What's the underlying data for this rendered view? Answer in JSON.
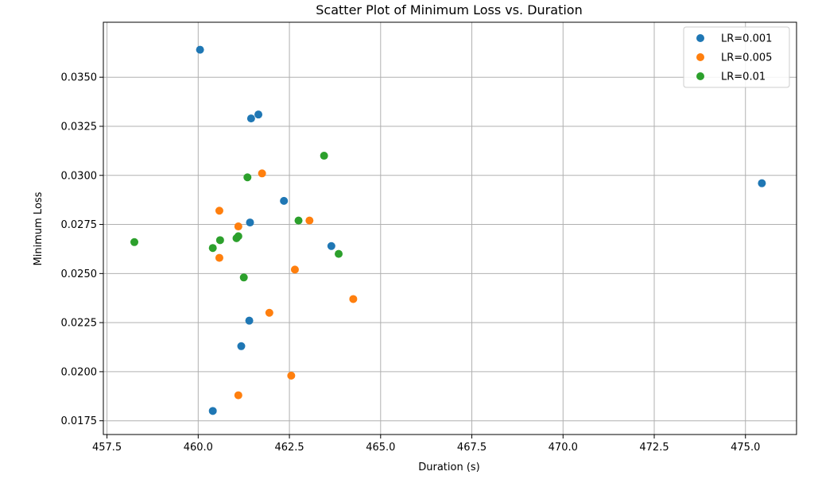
{
  "chart_data": {
    "type": "scatter",
    "title": "Scatter Plot of Minimum Loss vs. Duration",
    "xlabel": "Duration (s)",
    "ylabel": "Minimum Loss",
    "xlim": [
      457.4,
      476.4
    ],
    "ylim": [
      0.0168,
      0.0378
    ],
    "xticks": [
      457.5,
      460.0,
      462.5,
      465.0,
      467.5,
      470.0,
      472.5,
      475.0
    ],
    "xtick_labels": [
      "457.5",
      "460.0",
      "462.5",
      "465.0",
      "467.5",
      "470.0",
      "472.5",
      "475.0"
    ],
    "yticks": [
      0.0175,
      0.02,
      0.0225,
      0.025,
      0.0275,
      0.03,
      0.0325,
      0.035
    ],
    "ytick_labels": [
      "0.0175",
      "0.0200",
      "0.0225",
      "0.0250",
      "0.0275",
      "0.0300",
      "0.0325",
      "0.0350"
    ],
    "grid": true,
    "legend_position": "top-right",
    "series": [
      {
        "name": "LR=0.001",
        "color": "#1f77b4",
        "points": [
          [
            460.05,
            0.0364
          ],
          [
            461.65,
            0.0331
          ],
          [
            461.45,
            0.0329
          ],
          [
            475.45,
            0.0296
          ],
          [
            462.35,
            0.0287
          ],
          [
            461.42,
            0.0276
          ],
          [
            463.65,
            0.0264
          ],
          [
            461.4,
            0.0226
          ],
          [
            461.18,
            0.0213
          ],
          [
            460.4,
            0.018
          ]
        ]
      },
      {
        "name": "LR=0.005",
        "color": "#ff7f0e",
        "points": [
          [
            461.75,
            0.0301
          ],
          [
            460.58,
            0.0282
          ],
          [
            463.05,
            0.0277
          ],
          [
            461.1,
            0.0274
          ],
          [
            460.58,
            0.0258
          ],
          [
            462.65,
            0.0252
          ],
          [
            464.25,
            0.0237
          ],
          [
            461.95,
            0.023
          ],
          [
            462.55,
            0.0198
          ],
          [
            461.1,
            0.0188
          ]
        ]
      },
      {
        "name": "LR=0.01",
        "color": "#2ca02c",
        "points": [
          [
            463.45,
            0.031
          ],
          [
            461.35,
            0.0299
          ],
          [
            462.75,
            0.0277
          ],
          [
            458.25,
            0.0266
          ],
          [
            461.1,
            0.0269
          ],
          [
            461.05,
            0.0268
          ],
          [
            460.6,
            0.0267
          ],
          [
            460.4,
            0.0263
          ],
          [
            463.85,
            0.026
          ],
          [
            461.25,
            0.0248
          ]
        ]
      }
    ]
  }
}
